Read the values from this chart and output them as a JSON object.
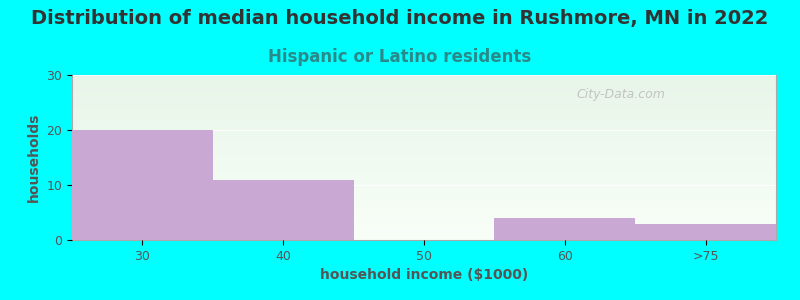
{
  "title": "Distribution of median household income in Rushmore, MN in 2022",
  "subtitle": "Hispanic or Latino residents",
  "xlabel": "household income ($1000)",
  "ylabel": "households",
  "background_color": "#00FFFF",
  "plot_bg_top": "#e8f5e9",
  "plot_bg_bottom": "#f8fff8",
  "bar_color": "#C9A8D4",
  "categories": [
    "30",
    "40",
    "50",
    "60",
    ">75"
  ],
  "values": [
    20,
    11,
    0,
    4,
    3
  ],
  "ylim": [
    0,
    30
  ],
  "yticks": [
    0,
    10,
    20,
    30
  ],
  "title_fontsize": 14,
  "subtitle_fontsize": 12,
  "subtitle_color": "#2A8A8A",
  "axis_label_fontsize": 10,
  "tick_fontsize": 9,
  "tick_color": "#555555",
  "watermark_text": "City-Data.com",
  "watermark_color": "#BBBBBB",
  "title_color": "#333333",
  "spine_color": "#aaaaaa"
}
